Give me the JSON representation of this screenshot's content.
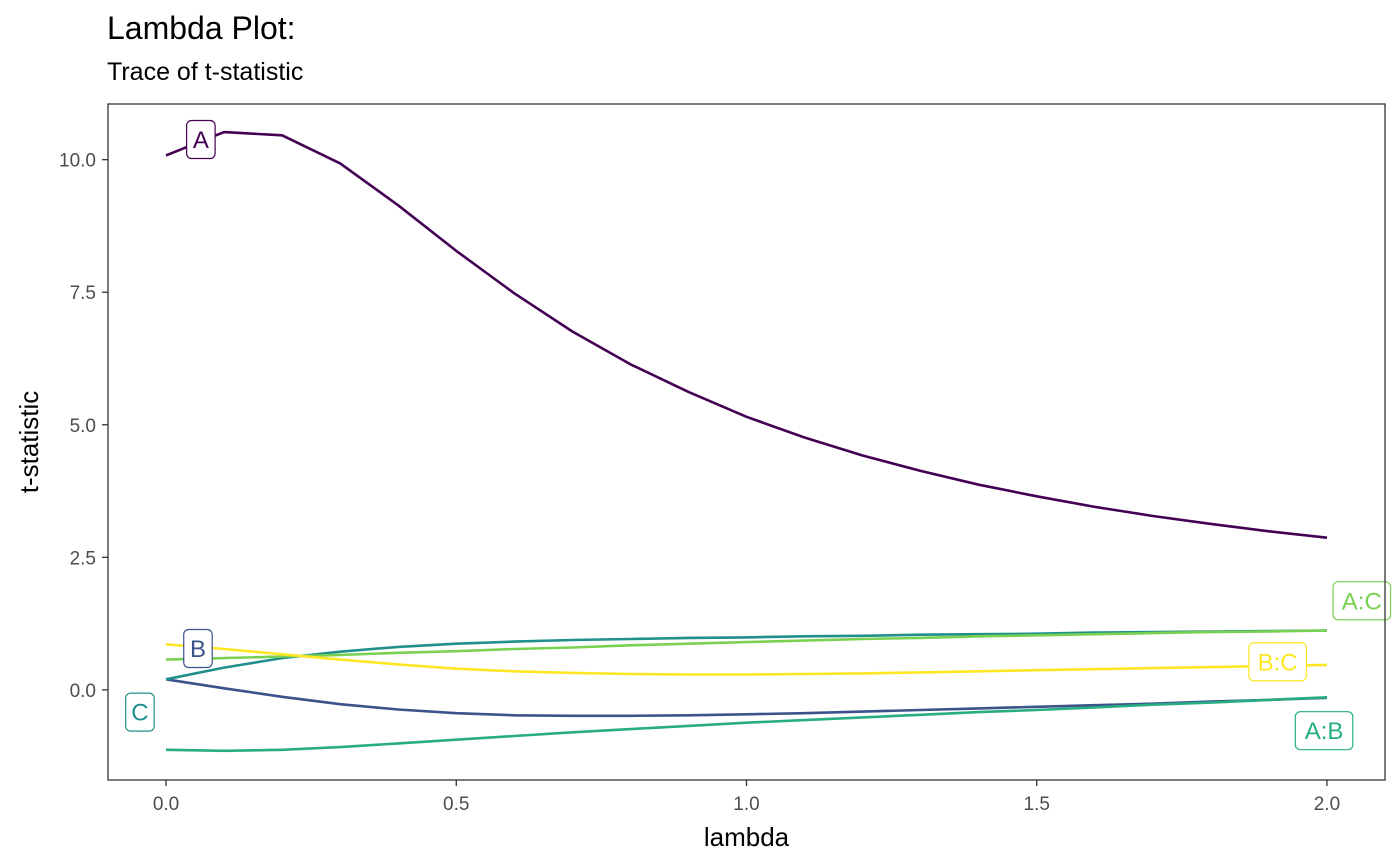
{
  "title": "Lambda Plot:",
  "subtitle": "Trace of t-statistic",
  "chart_data": {
    "type": "line",
    "xlabel": "lambda",
    "ylabel": "t-statistic",
    "xlim": [
      -0.1,
      2.1
    ],
    "ylim": [
      -1.7,
      11.05
    ],
    "x_ticks": [
      0.0,
      0.5,
      1.0,
      1.5,
      2.0
    ],
    "x_tick_labels": [
      "0.0",
      "0.5",
      "1.0",
      "1.5",
      "2.0"
    ],
    "y_ticks": [
      0.0,
      2.5,
      5.0,
      7.5,
      10.0
    ],
    "y_tick_labels": [
      "0.0",
      "2.5",
      "5.0",
      "7.5",
      "10.0"
    ],
    "grid": false,
    "legend": "none (direct labels)",
    "x": [
      0.0,
      0.1,
      0.2,
      0.3,
      0.4,
      0.5,
      0.6,
      0.7,
      0.8,
      0.9,
      1.0,
      1.1,
      1.2,
      1.3,
      1.4,
      1.5,
      1.6,
      1.7,
      1.8,
      1.9,
      2.0
    ],
    "series": [
      {
        "name": "A",
        "color": "#440154",
        "values": [
          10.08,
          10.52,
          10.46,
          9.93,
          9.14,
          8.28,
          7.48,
          6.76,
          6.14,
          5.62,
          5.15,
          4.76,
          4.42,
          4.13,
          3.87,
          3.65,
          3.45,
          3.28,
          3.13,
          2.99,
          2.87
        ],
        "label_x": 0.06,
        "label_y": 10.38
      },
      {
        "name": "B",
        "color": "#3b528b",
        "values": [
          0.2,
          0.03,
          -0.13,
          -0.27,
          -0.37,
          -0.44,
          -0.48,
          -0.49,
          -0.49,
          -0.48,
          -0.46,
          -0.44,
          -0.41,
          -0.38,
          -0.35,
          -0.32,
          -0.29,
          -0.26,
          -0.22,
          -0.19,
          -0.15
        ],
        "label_x": 0.055,
        "label_y": 0.78
      },
      {
        "name": "C",
        "color": "#21908c",
        "values": [
          0.2,
          0.42,
          0.6,
          0.72,
          0.81,
          0.87,
          0.91,
          0.94,
          0.96,
          0.98,
          0.99,
          1.01,
          1.02,
          1.04,
          1.05,
          1.06,
          1.08,
          1.09,
          1.1,
          1.11,
          1.12
        ],
        "label_x": -0.045,
        "label_y": -0.42
      },
      {
        "name": "A:B",
        "color": "#27ad81",
        "values": [
          -1.13,
          -1.15,
          -1.13,
          -1.08,
          -1.01,
          -0.94,
          -0.87,
          -0.8,
          -0.74,
          -0.68,
          -0.62,
          -0.57,
          -0.52,
          -0.47,
          -0.42,
          -0.38,
          -0.33,
          -0.28,
          -0.24,
          -0.19,
          -0.14
        ],
        "label_x": 1.995,
        "label_y": -0.77
      },
      {
        "name": "A:C",
        "color": "#7ad151",
        "values": [
          0.57,
          0.6,
          0.63,
          0.66,
          0.7,
          0.73,
          0.77,
          0.8,
          0.84,
          0.87,
          0.9,
          0.93,
          0.96,
          0.98,
          1.01,
          1.03,
          1.05,
          1.07,
          1.09,
          1.1,
          1.12
        ],
        "label_x": 2.06,
        "label_y": 1.68
      },
      {
        "name": "B:C",
        "color": "#fde725",
        "values": [
          0.86,
          0.77,
          0.67,
          0.57,
          0.48,
          0.4,
          0.35,
          0.32,
          0.3,
          0.29,
          0.29,
          0.3,
          0.31,
          0.33,
          0.35,
          0.37,
          0.39,
          0.41,
          0.43,
          0.45,
          0.47
        ],
        "label_x": 1.915,
        "label_y": 0.53
      }
    ]
  }
}
